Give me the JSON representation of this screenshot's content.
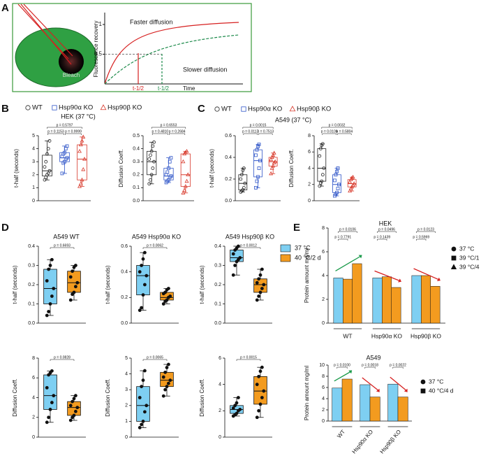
{
  "panel_labels": [
    "A",
    "B",
    "C",
    "D",
    "E"
  ],
  "diagram": {
    "bleach_label": "Bleach",
    "ylabel": "Fluorescence recovery",
    "xlabel": "Time",
    "yticks": [
      0.5,
      1
    ],
    "faster": "Faster diffusion",
    "slower": "Slower diffusion",
    "t_half_fast": "t-1/2",
    "t_half_slow": "t-1/2"
  },
  "chart_data": [
    {
      "type": "box",
      "title": "HEK (37 °C)",
      "ylabel": "t-half (seconds)",
      "ylim": [
        0,
        5
      ],
      "yticks": [
        0,
        1,
        2,
        3,
        4,
        5
      ],
      "filled": false,
      "series": [
        {
          "name": "WT",
          "color": "#222222",
          "marker": "circle",
          "box": [
            1.6,
            1.9,
            2.3,
            3.5,
            4.6
          ],
          "points": [
            1.6,
            1.8,
            2.0,
            2.1,
            2.3,
            2.6,
            3.0,
            3.6,
            4.0,
            4.6
          ]
        },
        {
          "name": "Hsp90α KO",
          "color": "#2f55c8",
          "marker": "square",
          "box": [
            2.1,
            3.0,
            3.3,
            3.7,
            4.2
          ],
          "points": [
            2.1,
            2.9,
            3.0,
            3.2,
            3.3,
            3.4,
            3.6,
            3.7,
            4.0,
            4.2
          ]
        },
        {
          "name": "Hsp90β KO",
          "color": "#d8382a",
          "marker": "triangle",
          "box": [
            1.1,
            1.6,
            3.2,
            4.3,
            4.9
          ],
          "points": [
            1.1,
            1.3,
            1.6,
            2.4,
            3.2,
            3.8,
            4.3,
            4.6,
            4.9
          ]
        }
      ],
      "p_labels": [
        "p = 0.5797",
        "p = 0.1153",
        "p = 0.9999"
      ]
    },
    {
      "type": "box",
      "ylabel": "Diffusion Coeff.",
      "ylim": [
        0,
        0.5
      ],
      "yticks": [
        {
          "value": 0,
          "label": "0.0"
        },
        0.1,
        0.2,
        0.3,
        0.4,
        0.5
      ],
      "filled": false,
      "series": [
        {
          "color": "#222222",
          "marker": "circle",
          "box": [
            0.13,
            0.2,
            0.3,
            0.38,
            0.45
          ],
          "points": [
            0.13,
            0.16,
            0.2,
            0.25,
            0.3,
            0.32,
            0.35,
            0.38,
            0.42,
            0.45
          ]
        },
        {
          "color": "#2f55c8",
          "marker": "square",
          "box": [
            0.14,
            0.16,
            0.19,
            0.25,
            0.33
          ],
          "points": [
            0.14,
            0.15,
            0.16,
            0.18,
            0.19,
            0.2,
            0.22,
            0.25,
            0.3,
            0.33
          ]
        },
        {
          "color": "#d8382a",
          "marker": "triangle",
          "box": [
            0.06,
            0.11,
            0.2,
            0.36,
            0.38
          ],
          "points": [
            0.06,
            0.08,
            0.11,
            0.15,
            0.2,
            0.3,
            0.36,
            0.37,
            0.38
          ]
        }
      ],
      "p_labels": [
        "p = 0.6553",
        "p = 0.4810",
        "p = 0.2684"
      ]
    },
    {
      "type": "box",
      "title": "A549 (37 °C)",
      "ylabel": "t-half (seconds)",
      "ylim": [
        0,
        0.6
      ],
      "yticks": [
        {
          "value": 0,
          "label": "0.0"
        },
        0.2,
        0.4,
        0.6
      ],
      "filled": false,
      "series": [
        {
          "name": "WT",
          "color": "#222222",
          "marker": "circle",
          "box": [
            0.08,
            0.1,
            0.16,
            0.24,
            0.3
          ],
          "points": [
            0.08,
            0.09,
            0.1,
            0.12,
            0.16,
            0.2,
            0.24,
            0.28,
            0.3
          ]
        },
        {
          "name": "Hsp90α KO",
          "color": "#2f55c8",
          "marker": "square",
          "box": [
            0.12,
            0.22,
            0.37,
            0.47,
            0.52
          ],
          "points": [
            0.12,
            0.18,
            0.22,
            0.3,
            0.37,
            0.42,
            0.47,
            0.5,
            0.52
          ]
        },
        {
          "name": "Hsp90β KO",
          "color": "#d8382a",
          "marker": "triangle",
          "box": [
            0.25,
            0.32,
            0.36,
            0.4,
            0.44
          ],
          "points": [
            0.25,
            0.3,
            0.32,
            0.35,
            0.36,
            0.38,
            0.4,
            0.42,
            0.44
          ]
        }
      ],
      "p_labels": [
        "p = 0.0015",
        "p = 0.0117",
        "p = 0.7513"
      ]
    },
    {
      "type": "box",
      "ylabel": "Diffusion Coeff.",
      "ylim": [
        0,
        8
      ],
      "yticks": [
        0,
        2,
        4,
        6,
        8
      ],
      "filled": false,
      "series": [
        {
          "color": "#222222",
          "marker": "circle",
          "box": [
            1.8,
            2.4,
            4,
            6.4,
            7
          ],
          "points": [
            1.8,
            2.2,
            2.4,
            3.2,
            4,
            5.5,
            6.4,
            6.8,
            7
          ]
        },
        {
          "color": "#2f55c8",
          "marker": "square",
          "box": [
            0.6,
            1,
            2,
            3.2,
            4
          ],
          "points": [
            0.6,
            0.8,
            1,
            1.5,
            2,
            2.5,
            3.2,
            3.6,
            4
          ]
        },
        {
          "color": "#d8382a",
          "marker": "triangle",
          "box": [
            1.2,
            1.7,
            2.1,
            2.6,
            2.9
          ],
          "points": [
            1.2,
            1.5,
            1.7,
            1.9,
            2.1,
            2.3,
            2.6,
            2.8,
            2.9
          ]
        }
      ],
      "p_labels": [
        "p = 0.0032",
        "p = 0.0109",
        "p = 0.5804"
      ]
    },
    {
      "type": "box",
      "title": "A549 WT",
      "ylabel": "t-half (seconds)",
      "ylim": [
        0,
        0.4
      ],
      "yticks": [
        {
          "value": 0,
          "label": "0.0"
        },
        0.1,
        0.2,
        0.3,
        0.4
      ],
      "filled": true,
      "series": [
        {
          "name": "37 °C",
          "color": "#7ecff2",
          "box": [
            0.04,
            0.1,
            0.18,
            0.28,
            0.33
          ],
          "points": [
            0.04,
            0.06,
            0.1,
            0.14,
            0.18,
            0.22,
            0.28,
            0.3,
            0.33
          ]
        },
        {
          "name": "40 °C/2 d",
          "color": "#f39b1f",
          "box": [
            0.12,
            0.16,
            0.21,
            0.27,
            0.3
          ],
          "points": [
            0.12,
            0.15,
            0.16,
            0.19,
            0.21,
            0.24,
            0.27,
            0.29,
            0.3
          ]
        }
      ],
      "p_labels": [
        "p = 0.6693"
      ]
    },
    {
      "type": "box",
      "title": "A549 Hsp90α KO",
      "ylabel": "t-half (seconds)",
      "ylim": [
        0,
        0.6
      ],
      "yticks": [
        {
          "value": 0,
          "label": "0.0"
        },
        0.2,
        0.4,
        0.6
      ],
      "filled": true,
      "series": [
        {
          "color": "#7ecff2",
          "box": [
            0.1,
            0.22,
            0.37,
            0.45,
            0.55
          ],
          "points": [
            0.1,
            0.12,
            0.22,
            0.3,
            0.37,
            0.4,
            0.45,
            0.5,
            0.55
          ]
        },
        {
          "color": "#f39b1f",
          "box": [
            0.15,
            0.18,
            0.2,
            0.24,
            0.27
          ],
          "points": [
            0.15,
            0.17,
            0.18,
            0.2,
            0.21,
            0.23,
            0.24,
            0.26,
            0.27
          ]
        }
      ],
      "p_labels": [
        "p = 0.0062"
      ]
    },
    {
      "type": "box",
      "title": "A549 Hsp90β KO",
      "ylabel": "t-half (seconds)",
      "ylim": [
        0,
        0.4
      ],
      "yticks": [
        {
          "value": 0,
          "label": "0.0"
        },
        0.1,
        0.2,
        0.3,
        0.4
      ],
      "filled": true,
      "series": [
        {
          "color": "#7ecff2",
          "box": [
            0.25,
            0.32,
            0.34,
            0.38,
            0.4
          ],
          "points": [
            0.25,
            0.3,
            0.32,
            0.33,
            0.34,
            0.36,
            0.38,
            0.39,
            0.4
          ]
        },
        {
          "color": "#f39b1f",
          "box": [
            0.12,
            0.16,
            0.2,
            0.23,
            0.28
          ],
          "points": [
            0.12,
            0.14,
            0.16,
            0.18,
            0.2,
            0.21,
            0.23,
            0.25,
            0.28
          ]
        }
      ],
      "p_labels": [
        "p = 0.0012"
      ]
    },
    {
      "type": "box",
      "ylabel": "Diffusion Coeff.",
      "ylim": [
        0,
        8
      ],
      "yticks": [
        0,
        2,
        4,
        6,
        8
      ],
      "filled": true,
      "series": [
        {
          "color": "#7ecff2",
          "box": [
            1.5,
            2.8,
            4.2,
            6.3,
            6.7
          ],
          "points": [
            1.5,
            2,
            2.8,
            3.5,
            4.2,
            5,
            6.3,
            6.5,
            6.7
          ]
        },
        {
          "color": "#f39b1f",
          "box": [
            1.7,
            2.2,
            3,
            3.6,
            4.2
          ],
          "points": [
            1.7,
            2,
            2.2,
            2.6,
            3,
            3.2,
            3.6,
            3.9,
            4.2
          ]
        }
      ],
      "p_labels": [
        "p = 0.0828"
      ]
    },
    {
      "type": "box",
      "ylabel": "Diffusion Coeff.",
      "ylim": [
        0,
        5
      ],
      "yticks": [
        0,
        1,
        2,
        3,
        4,
        5
      ],
      "filled": true,
      "series": [
        {
          "color": "#7ecff2",
          "box": [
            0.6,
            1,
            2,
            3.2,
            4.2
          ],
          "points": [
            0.6,
            0.8,
            1,
            1.6,
            2,
            2.5,
            3.2,
            3.6,
            4.2
          ]
        },
        {
          "color": "#f39b1f",
          "box": [
            2.6,
            3.2,
            3.6,
            4.1,
            4.6
          ],
          "points": [
            2.6,
            3,
            3.2,
            3.4,
            3.6,
            3.8,
            4.1,
            4.4,
            4.6
          ]
        }
      ],
      "p_labels": [
        "p = 0.0065"
      ]
    },
    {
      "type": "box",
      "ylabel": "Diffusion Coeff.",
      "ylim": [
        0,
        6
      ],
      "yticks": [
        0,
        2,
        4,
        6
      ],
      "filled": true,
      "series": [
        {
          "color": "#7ecff2",
          "box": [
            1.6,
            1.8,
            2.1,
            2.4,
            3
          ],
          "points": [
            1.6,
            1.7,
            1.8,
            2,
            2.1,
            2.2,
            2.4,
            2.6,
            3
          ]
        },
        {
          "color": "#f39b1f",
          "box": [
            1.5,
            2.5,
            3.5,
            4.6,
            5.3
          ],
          "points": [
            1.5,
            2,
            2.5,
            3,
            3.5,
            4,
            4.6,
            5,
            5.3
          ]
        }
      ],
      "p_labels": [
        "p = 0.0015"
      ]
    },
    {
      "type": "bar",
      "title": "HEK",
      "ylabel": "Protein amount mg/ml",
      "ylim": [
        0,
        8
      ],
      "yticks": [
        0,
        2,
        4,
        6,
        8
      ],
      "categories": [
        "WT",
        "Hsp90α KO",
        "Hsp90β KO"
      ],
      "series": [
        {
          "name": "37 °C",
          "color": "#7ecff2",
          "marker": "circle",
          "values": [
            3.8,
            3.8,
            4.0
          ]
        },
        {
          "name": "39 °C/1 d",
          "color": "#f39b1f",
          "marker": "square",
          "values": [
            3.7,
            3.9,
            4.0
          ]
        },
        {
          "name": "39 °C/4 d",
          "color": "#f39b1f",
          "marker": "triangle",
          "values": [
            5.0,
            3.0,
            3.1
          ]
        }
      ],
      "p_labels": [
        [
          "p = 0.0106",
          "p = 0.7791"
        ],
        [
          "p = 0.0496",
          "p = 0.1439"
        ],
        [
          "p = 0.0123",
          "p = 0.5969"
        ]
      ]
    },
    {
      "type": "bar",
      "title": "A549",
      "ylabel": "Protein amount mg/ml",
      "ylim": [
        0,
        10
      ],
      "yticks": [
        0,
        2,
        4,
        6,
        8,
        10
      ],
      "categories": [
        "WT",
        "Hsp90α KO",
        "Hsp90β KO"
      ],
      "series": [
        {
          "name": "37 °C",
          "color": "#7ecff2",
          "marker": "circle",
          "values": [
            5.9,
            6.5,
            6.6
          ]
        },
        {
          "name": "40 °C/4 d",
          "color": "#f39b1f",
          "marker": "square",
          "values": [
            7.5,
            4.3,
            4.3
          ]
        }
      ],
      "p_labels": [
        "p = 0.0100",
        "p = 0.0018",
        "p = 0.0022"
      ]
    }
  ]
}
